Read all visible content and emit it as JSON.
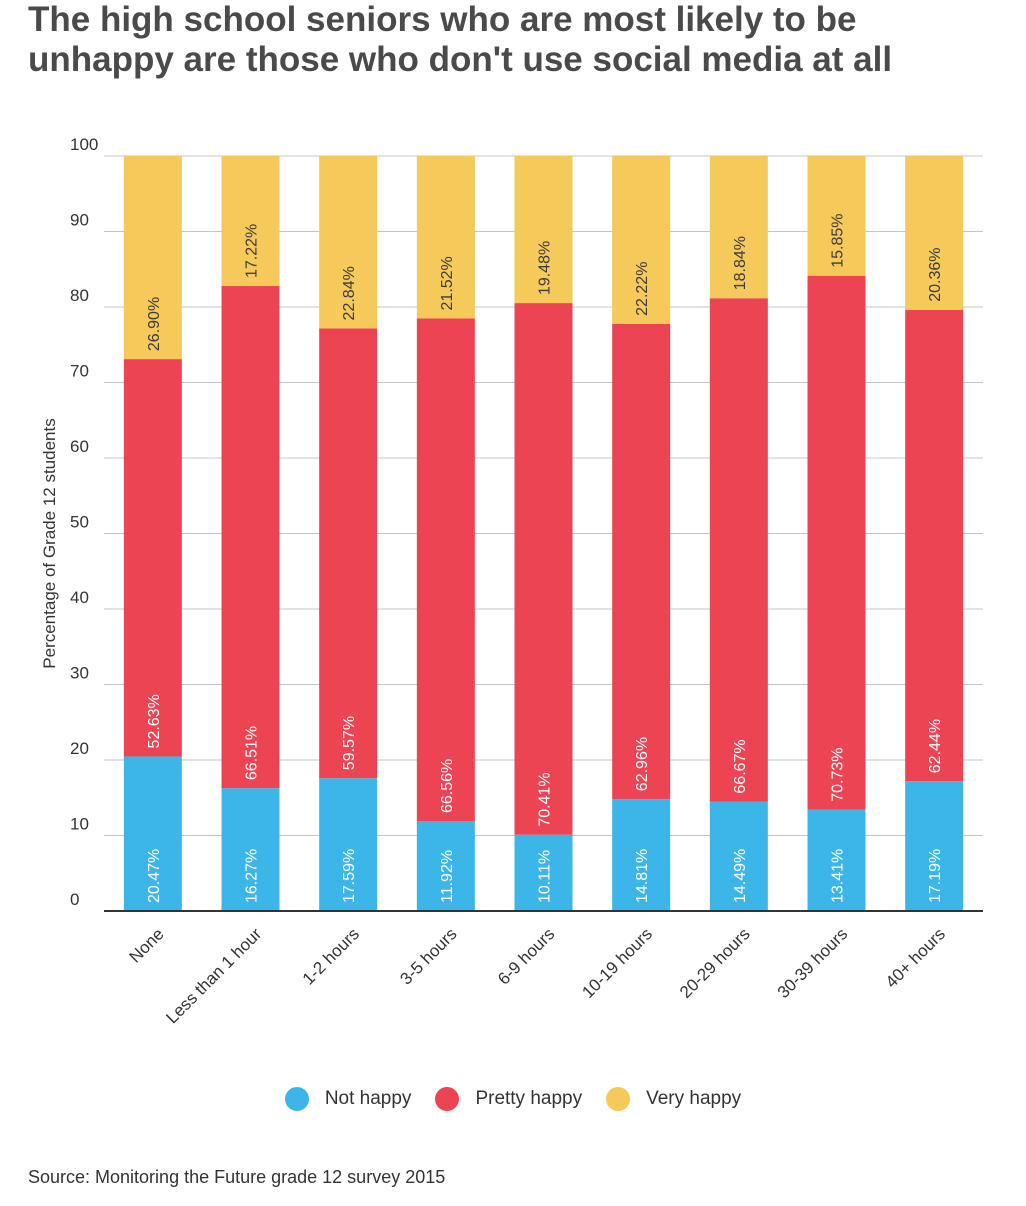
{
  "title_lines": [
    "The high school seniors who are most likely to be",
    "unhappy are those who don't use social media at all"
  ],
  "source": "Source: Monitoring the Future grade 12 survey 2015",
  "colors": {
    "not_happy": "#3cb6e8",
    "pretty_happy": "#ec4452",
    "very_happy": "#f5c95a"
  },
  "chart_data": {
    "type": "bar",
    "stacked": true,
    "title": "The high school seniors who are most likely to be unhappy are those who don't use social media at all",
    "ylabel": "Percentage of Grade 12 students",
    "xlabel": "",
    "ylim": [
      0,
      100
    ],
    "yticks": [
      0,
      10,
      20,
      30,
      40,
      50,
      60,
      70,
      80,
      90,
      100
    ],
    "grid": true,
    "legend_position": "bottom",
    "categories": [
      "None",
      "Less than 1 hour",
      "1-2 hours",
      "3-5 hours",
      "6-9 hours",
      "10-19 hours",
      "20-29 hours",
      "30-39 hours",
      "40+ hours"
    ],
    "series": [
      {
        "name": "Not happy",
        "values": [
          20.47,
          16.27,
          17.59,
          11.92,
          10.11,
          14.81,
          14.49,
          13.41,
          17.19
        ],
        "labels": [
          "20.47%",
          "16.27%",
          "17.59%",
          "11.92%",
          "10.11%",
          "14.81%",
          "14.49%",
          "13.41%",
          "17.19%"
        ]
      },
      {
        "name": "Pretty happy",
        "values": [
          52.63,
          66.51,
          59.57,
          66.56,
          70.41,
          62.96,
          66.67,
          70.73,
          62.44
        ],
        "labels": [
          "52.63%",
          "66.51%",
          "59.57%",
          "66.56%",
          "70.41%",
          "62.96%",
          "66.67%",
          "70.73%",
          "62.44%"
        ]
      },
      {
        "name": "Very happy",
        "values": [
          26.9,
          17.22,
          22.84,
          21.52,
          19.48,
          22.22,
          18.84,
          15.85,
          20.36
        ],
        "labels": [
          "26.90%",
          "17.22%",
          "22.84%",
          "21.52%",
          "19.48%",
          "22.22%",
          "18.84%",
          "15.85%",
          "20.36%"
        ]
      }
    ]
  }
}
